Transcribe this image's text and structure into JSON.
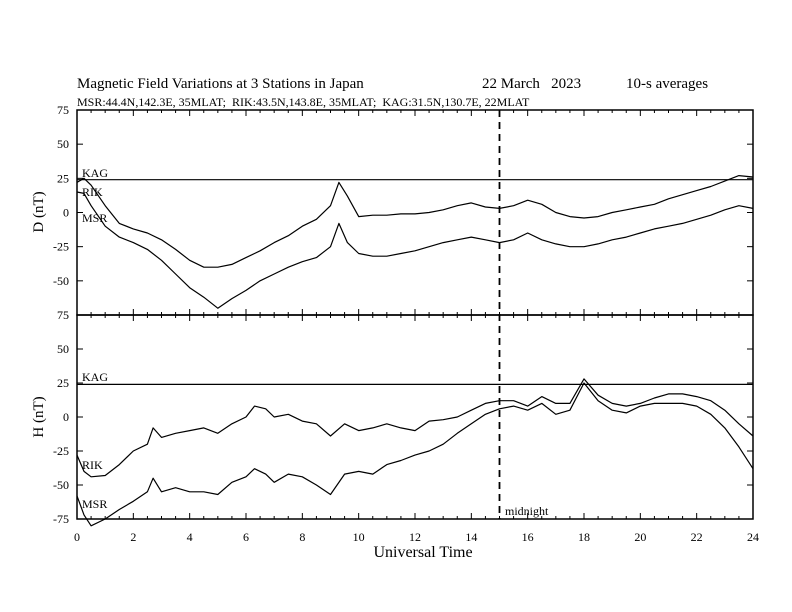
{
  "header": {
    "title": "Magnetic Field Variations at 3 Stations in Japan",
    "date": "22 March   2023",
    "averaging": "10-s averages",
    "stations": "MSR:44.4N,142.3E, 35MLAT;  RIK:43.5N,143.8E, 35MLAT;  KAG:31.5N,130.7E, 22MLAT"
  },
  "chart_data": [
    {
      "type": "line",
      "ylabel": "D (nT)",
      "ylim": [
        -75,
        75
      ],
      "yticks": [
        -75,
        -50,
        -25,
        0,
        25,
        50,
        75
      ],
      "xlim": [
        0,
        24
      ],
      "series": [
        {
          "name": "KAG",
          "x": [
            0,
            24
          ],
          "y": [
            24,
            24
          ]
        },
        {
          "name": "RIK",
          "x": [
            0,
            0.25,
            0.5,
            1,
            1.5,
            2,
            2.5,
            3,
            3.5,
            4,
            4.5,
            5,
            5.5,
            6,
            6.5,
            7,
            7.5,
            8,
            8.5,
            9,
            9.3,
            9.6,
            10,
            10.5,
            11,
            11.5,
            12,
            12.5,
            13,
            13.5,
            14,
            14.5,
            15,
            15.5,
            16,
            16.5,
            17,
            17.5,
            18,
            18.5,
            19,
            19.5,
            20,
            20.5,
            21,
            21.5,
            22,
            22.5,
            23,
            23.5,
            24
          ],
          "y": [
            22,
            25,
            20,
            5,
            -8,
            -12,
            -15,
            -20,
            -27,
            -35,
            -40,
            -40,
            -38,
            -33,
            -28,
            -22,
            -17,
            -10,
            -5,
            5,
            22,
            12,
            -3,
            -2,
            -2,
            -1,
            -1,
            0,
            2,
            5,
            7,
            4,
            3,
            5,
            9,
            6,
            0,
            -3,
            -4,
            -3,
            0,
            2,
            4,
            6,
            10,
            13,
            16,
            19,
            23,
            27,
            26
          ]
        },
        {
          "name": "MSR",
          "x": [
            0,
            0.25,
            0.5,
            1,
            1.5,
            2,
            2.5,
            3,
            3.5,
            4,
            4.5,
            5,
            5.5,
            6,
            6.5,
            7,
            7.5,
            8,
            8.5,
            9,
            9.3,
            9.6,
            10,
            10.5,
            11,
            11.5,
            12,
            12.5,
            13,
            13.5,
            14,
            14.5,
            15,
            15.5,
            16,
            16.5,
            17,
            17.5,
            18,
            18.5,
            19,
            19.5,
            20,
            20.5,
            21,
            21.5,
            22,
            22.5,
            23,
            23.5,
            24
          ],
          "y": [
            15,
            14,
            5,
            -10,
            -18,
            -22,
            -27,
            -35,
            -45,
            -55,
            -62,
            -70,
            -63,
            -57,
            -50,
            -45,
            -40,
            -36,
            -33,
            -25,
            -8,
            -22,
            -30,
            -32,
            -32,
            -30,
            -28,
            -25,
            -22,
            -20,
            -18,
            -20,
            -22,
            -20,
            -15,
            -20,
            -23,
            -25,
            -25,
            -23,
            -20,
            -18,
            -15,
            -12,
            -10,
            -8,
            -5,
            -2,
            2,
            5,
            3
          ]
        }
      ]
    },
    {
      "type": "line",
      "ylabel": "H (nT)",
      "ylim": [
        -75,
        75
      ],
      "yticks": [
        -75,
        -50,
        -25,
        0,
        25,
        50,
        75
      ],
      "xlim": [
        0,
        24
      ],
      "xlabel": "Universal Time",
      "xticks": [
        0,
        2,
        4,
        6,
        8,
        10,
        12,
        14,
        16,
        18,
        20,
        22,
        24
      ],
      "series": [
        {
          "name": "KAG",
          "x": [
            0,
            24
          ],
          "y": [
            24,
            24
          ]
        },
        {
          "name": "RIK",
          "x": [
            0,
            0.25,
            0.5,
            1,
            1.5,
            2,
            2.5,
            2.7,
            3,
            3.5,
            4,
            4.5,
            5,
            5.5,
            6,
            6.3,
            6.7,
            7,
            7.5,
            8,
            8.5,
            9,
            9.5,
            10,
            10.5,
            11,
            11.5,
            12,
            12.5,
            13,
            13.5,
            14,
            14.5,
            15,
            15.5,
            16,
            16.5,
            17,
            17.5,
            18,
            18.5,
            19,
            19.5,
            20,
            20.5,
            21,
            21.5,
            22,
            22.5,
            23,
            23.5,
            24
          ],
          "y": [
            -28,
            -40,
            -44,
            -43,
            -35,
            -25,
            -20,
            -8,
            -15,
            -12,
            -10,
            -8,
            -12,
            -5,
            0,
            8,
            6,
            0,
            2,
            -3,
            -5,
            -14,
            -5,
            -10,
            -8,
            -5,
            -8,
            -10,
            -3,
            -2,
            0,
            5,
            10,
            12,
            12,
            8,
            15,
            10,
            10,
            28,
            16,
            10,
            8,
            10,
            14,
            17,
            17,
            15,
            12,
            5,
            -5,
            -14
          ]
        },
        {
          "name": "MSR",
          "x": [
            0,
            0.25,
            0.5,
            1,
            1.5,
            2,
            2.5,
            2.7,
            3,
            3.5,
            4,
            4.5,
            5,
            5.5,
            6,
            6.3,
            6.7,
            7,
            7.5,
            8,
            8.5,
            9,
            9.5,
            10,
            10.5,
            11,
            11.5,
            12,
            12.5,
            13,
            13.5,
            14,
            14.5,
            15,
            15.5,
            16,
            16.5,
            17,
            17.5,
            18,
            18.5,
            19,
            19.5,
            20,
            20.5,
            21,
            21.5,
            22,
            22.5,
            23,
            23.5,
            24
          ],
          "y": [
            -58,
            -72,
            -80,
            -75,
            -68,
            -62,
            -55,
            -45,
            -55,
            -52,
            -55,
            -55,
            -57,
            -48,
            -44,
            -38,
            -42,
            -48,
            -42,
            -44,
            -50,
            -57,
            -42,
            -40,
            -42,
            -35,
            -32,
            -28,
            -25,
            -20,
            -12,
            -5,
            2,
            6,
            8,
            5,
            10,
            2,
            5,
            25,
            12,
            5,
            3,
            8,
            10,
            10,
            10,
            8,
            2,
            -8,
            -22,
            -38
          ]
        }
      ]
    }
  ],
  "annotations": {
    "midnight_label": "midnight",
    "midnight_x": 15
  },
  "labels": {
    "kag": "KAG",
    "rik": "RIK",
    "msr": "MSR"
  }
}
